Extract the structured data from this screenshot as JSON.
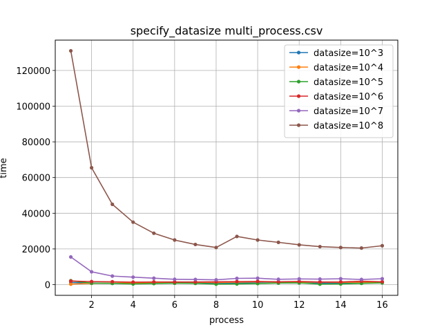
{
  "chart_data": {
    "type": "line",
    "title": "specify_datasize multi_process.csv",
    "xlabel": "process",
    "ylabel": "time",
    "xlim": [
      0.25,
      16.75
    ],
    "ylim": [
      -6000,
      137000
    ],
    "xticks": [
      2,
      4,
      6,
      8,
      10,
      12,
      14,
      16
    ],
    "yticks": [
      0,
      20000,
      40000,
      60000,
      80000,
      100000,
      120000
    ],
    "grid": true,
    "legend_position": "top-right",
    "x": [
      1,
      2,
      3,
      4,
      5,
      6,
      7,
      8,
      9,
      10,
      11,
      12,
      13,
      14,
      15,
      16
    ],
    "series": [
      {
        "name": "datasize=10^3",
        "color": "#1f77b4",
        "values": [
          1200,
          900,
          700,
          600,
          800,
          900,
          900,
          800,
          900,
          1000,
          900,
          1000,
          900,
          900,
          1000,
          1100
        ]
      },
      {
        "name": "datasize=10^4",
        "color": "#ff7f0e",
        "values": [
          300,
          700,
          800,
          900,
          1200,
          1300,
          1400,
          1200,
          1400,
          1600,
          1500,
          1500,
          1400,
          1300,
          1400,
          1300
        ]
      },
      {
        "name": "datasize=10^5",
        "color": "#2ca02c",
        "values": [
          2200,
          800,
          700,
          400,
          600,
          800,
          700,
          300,
          400,
          600,
          900,
          1000,
          300,
          400,
          700,
          1000
        ]
      },
      {
        "name": "datasize=10^6",
        "color": "#d62728",
        "values": [
          2000,
          1700,
          1600,
          1400,
          1500,
          1500,
          1500,
          1600,
          1700,
          1800,
          1600,
          1800,
          1500,
          1500,
          1900,
          1600
        ]
      },
      {
        "name": "datasize=10^7",
        "color": "#9467bd",
        "values": [
          15500,
          7200,
          4800,
          4200,
          3600,
          3000,
          2900,
          2700,
          3500,
          3600,
          3000,
          3200,
          3100,
          3300,
          2900,
          3300
        ]
      },
      {
        "name": "datasize=10^8",
        "color": "#8c564b",
        "values": [
          131000,
          65500,
          45000,
          35000,
          28800,
          25000,
          22500,
          20800,
          27000,
          25000,
          23700,
          22300,
          21300,
          20800,
          20500,
          21800
        ]
      }
    ]
  }
}
